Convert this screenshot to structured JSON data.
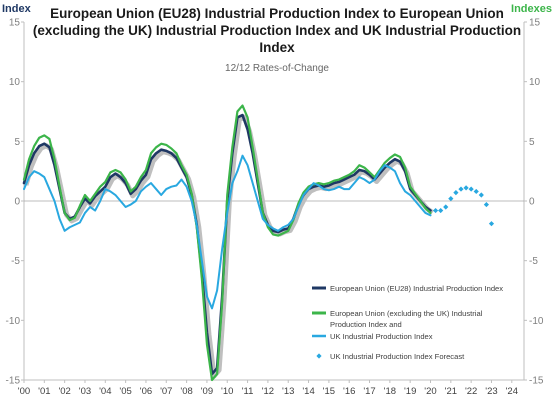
{
  "chart_data": {
    "type": "line",
    "title_lines": [
      "European Union (EU28) Industrial Production Index to European Union",
      "(excluding the UK) Industrial Production Index and UK Industrial Production",
      "Index"
    ],
    "subtitle": "12/12 Rates-of-Change",
    "y_left_label": "Index",
    "y_right_label": "Indexes",
    "ylim": [
      -15,
      15
    ],
    "y_ticks": [
      15,
      10,
      5,
      0,
      -5,
      -10,
      -15
    ],
    "y_tick_labels": [
      "15",
      "10",
      "5",
      "0",
      "-5",
      "-10",
      "-15"
    ],
    "xlim": [
      2000,
      2024.6
    ],
    "x_ticks": [
      2000,
      2001,
      2002,
      2003,
      2004,
      2005,
      2006,
      2007,
      2008,
      2009,
      2010,
      2011,
      2012,
      2013,
      2014,
      2015,
      2016,
      2017,
      2018,
      2019,
      2020,
      2021,
      2022,
      2023,
      2024
    ],
    "x_tick_labels": [
      "'00",
      "'01",
      "'02",
      "'03",
      "'04",
      "'05",
      "'06",
      "'07",
      "'08",
      "'09",
      "'10",
      "'11",
      "'12",
      "'13",
      "'14",
      "'15",
      "'16",
      "'17",
      "'18",
      "'19",
      "'20",
      "'21",
      "'22",
      "'23",
      "'24"
    ],
    "grid": false,
    "legend_position": "bottom-right",
    "colors": {
      "eu28": "#1f3864",
      "eu_ex_uk": "#3cb54a",
      "uk": "#29a8e0",
      "uk_forecast": "#29a8e0",
      "shadow": "#bfbfbf",
      "zero_line": "#a6a6a6"
    },
    "series": [
      {
        "name": "European Union (EU28) Industrial Production Index",
        "key": "eu28",
        "style": "line",
        "x": [
          2000,
          2000.25,
          2000.5,
          2000.75,
          2001,
          2001.25,
          2001.5,
          2001.75,
          2002,
          2002.25,
          2002.5,
          2002.75,
          2003,
          2003.25,
          2003.5,
          2003.75,
          2004,
          2004.25,
          2004.5,
          2004.75,
          2005,
          2005.25,
          2005.5,
          2005.75,
          2006,
          2006.25,
          2006.5,
          2006.75,
          2007,
          2007.25,
          2007.5,
          2007.75,
          2008,
          2008.25,
          2008.5,
          2008.75,
          2009,
          2009.25,
          2009.5,
          2009.75,
          2010,
          2010.25,
          2010.5,
          2010.75,
          2011,
          2011.25,
          2011.5,
          2011.75,
          2012,
          2012.25,
          2012.5,
          2012.75,
          2013,
          2013.25,
          2013.5,
          2013.75,
          2014,
          2014.25,
          2014.5,
          2014.75,
          2015,
          2015.25,
          2015.5,
          2015.75,
          2016,
          2016.25,
          2016.5,
          2016.75,
          2017,
          2017.25,
          2017.5,
          2017.75,
          2018,
          2018.25,
          2018.5,
          2018.75,
          2019,
          2019.25,
          2019.5,
          2019.75,
          2020
        ],
        "y": [
          1.5,
          3.0,
          4.0,
          4.6,
          4.8,
          4.5,
          3.0,
          1.0,
          -1.0,
          -1.5,
          -1.3,
          -0.5,
          0.2,
          -0.2,
          0.4,
          0.8,
          1.2,
          2.0,
          2.3,
          2.0,
          1.5,
          0.6,
          1.0,
          1.7,
          2.2,
          3.5,
          4.0,
          4.3,
          4.2,
          4.0,
          3.6,
          2.8,
          2.0,
          0.5,
          -2.0,
          -6.0,
          -11.0,
          -14.5,
          -14.0,
          -8.0,
          0.0,
          4.0,
          7.0,
          7.2,
          6.0,
          4.0,
          1.5,
          -1.0,
          -2.0,
          -2.5,
          -2.6,
          -2.4,
          -2.3,
          -1.5,
          -0.3,
          0.5,
          1.0,
          1.2,
          1.3,
          1.2,
          1.3,
          1.5,
          1.6,
          1.8,
          2.0,
          2.2,
          2.6,
          2.5,
          2.2,
          1.8,
          2.3,
          2.8,
          3.2,
          3.5,
          3.3,
          2.5,
          1.0,
          0.5,
          0.0,
          -0.5,
          -0.8
        ]
      },
      {
        "name": "European Union (excluding the UK) Industrial Production Index and",
        "key": "eu_ex_uk",
        "style": "line",
        "x": [
          2000,
          2000.25,
          2000.5,
          2000.75,
          2001,
          2001.25,
          2001.5,
          2001.75,
          2002,
          2002.25,
          2002.5,
          2002.75,
          2003,
          2003.25,
          2003.5,
          2003.75,
          2004,
          2004.25,
          2004.5,
          2004.75,
          2005,
          2005.25,
          2005.5,
          2005.75,
          2006,
          2006.25,
          2006.5,
          2006.75,
          2007,
          2007.25,
          2007.5,
          2007.75,
          2008,
          2008.25,
          2008.5,
          2008.75,
          2009,
          2009.25,
          2009.5,
          2009.75,
          2010,
          2010.25,
          2010.5,
          2010.75,
          2011,
          2011.25,
          2011.5,
          2011.75,
          2012,
          2012.25,
          2012.5,
          2012.75,
          2013,
          2013.25,
          2013.5,
          2013.75,
          2014,
          2014.25,
          2014.5,
          2014.75,
          2015,
          2015.25,
          2015.5,
          2015.75,
          2016,
          2016.25,
          2016.5,
          2016.75,
          2017,
          2017.25,
          2017.5,
          2017.75,
          2018,
          2018.25,
          2018.5,
          2018.75,
          2019,
          2019.25,
          2019.5,
          2019.75,
          2020
        ],
        "y": [
          1.8,
          3.5,
          4.6,
          5.3,
          5.5,
          5.2,
          3.5,
          1.2,
          -1.0,
          -1.6,
          -1.4,
          -0.4,
          0.5,
          0.0,
          0.6,
          1.2,
          1.6,
          2.4,
          2.6,
          2.4,
          1.8,
          0.8,
          1.2,
          2.0,
          2.6,
          4.0,
          4.5,
          4.8,
          4.7,
          4.4,
          4.0,
          3.0,
          2.2,
          0.6,
          -2.2,
          -6.5,
          -12.0,
          -15.0,
          -14.5,
          -8.5,
          0.5,
          4.5,
          7.5,
          8.0,
          7.0,
          4.5,
          1.8,
          -1.0,
          -2.2,
          -2.8,
          -2.9,
          -2.7,
          -2.5,
          -1.6,
          -0.2,
          0.7,
          1.2,
          1.4,
          1.5,
          1.4,
          1.5,
          1.7,
          1.8,
          2.0,
          2.2,
          2.5,
          3.0,
          2.8,
          2.4,
          2.0,
          2.6,
          3.2,
          3.6,
          3.9,
          3.7,
          2.8,
          1.2,
          0.6,
          0.0,
          -0.6,
          -1.0
        ]
      },
      {
        "name": "UK Industrial Production Index",
        "key": "uk",
        "style": "line",
        "x": [
          2000,
          2000.25,
          2000.5,
          2000.75,
          2001,
          2001.25,
          2001.5,
          2001.75,
          2002,
          2002.25,
          2002.5,
          2002.75,
          2003,
          2003.25,
          2003.5,
          2003.75,
          2004,
          2004.25,
          2004.5,
          2004.75,
          2005,
          2005.25,
          2005.5,
          2005.75,
          2006,
          2006.25,
          2006.5,
          2006.75,
          2007,
          2007.25,
          2007.5,
          2007.75,
          2008,
          2008.25,
          2008.5,
          2008.75,
          2009,
          2009.25,
          2009.5,
          2009.75,
          2010,
          2010.25,
          2010.5,
          2010.75,
          2011,
          2011.25,
          2011.5,
          2011.75,
          2012,
          2012.25,
          2012.5,
          2012.75,
          2013,
          2013.25,
          2013.5,
          2013.75,
          2014,
          2014.25,
          2014.5,
          2014.75,
          2015,
          2015.25,
          2015.5,
          2015.75,
          2016,
          2016.25,
          2016.5,
          2016.75,
          2017,
          2017.25,
          2017.5,
          2017.75,
          2018,
          2018.25,
          2018.5,
          2018.75,
          2019,
          2019.25,
          2019.5,
          2019.75,
          2020
        ],
        "y": [
          1.0,
          2.0,
          2.5,
          2.3,
          2.0,
          1.0,
          0.0,
          -1.5,
          -2.5,
          -2.2,
          -2.0,
          -1.8,
          -1.0,
          -0.5,
          -0.8,
          0.0,
          1.0,
          0.8,
          0.5,
          0.0,
          -0.5,
          -0.3,
          0.0,
          0.8,
          1.2,
          1.5,
          1.0,
          0.5,
          1.0,
          1.2,
          1.3,
          1.8,
          1.2,
          0.0,
          -2.0,
          -5.0,
          -8.0,
          -9.0,
          -7.5,
          -4.0,
          -1.0,
          1.5,
          2.5,
          3.8,
          3.0,
          1.5,
          0.0,
          -1.5,
          -2.0,
          -2.3,
          -2.5,
          -2.2,
          -2.0,
          -1.5,
          -0.5,
          0.5,
          1.0,
          1.5,
          1.3,
          1.0,
          0.9,
          1.0,
          1.2,
          1.0,
          1.0,
          1.5,
          2.0,
          1.8,
          1.5,
          1.8,
          2.5,
          3.0,
          2.8,
          2.5,
          1.5,
          0.8,
          0.5,
          0.0,
          -0.5,
          -1.0,
          -1.2
        ]
      },
      {
        "name": "UK Industrial Production Index Forecast",
        "key": "uk_forecast",
        "style": "points",
        "x": [
          2020.25,
          2020.5,
          2020.75,
          2021,
          2021.25,
          2021.5,
          2021.75,
          2022,
          2022.25,
          2022.5,
          2022.75,
          2023
        ],
        "y": [
          -0.8,
          -0.8,
          -0.5,
          0.2,
          0.7,
          1.0,
          1.1,
          1.0,
          0.8,
          0.5,
          -0.3,
          -1.9
        ]
      }
    ]
  }
}
